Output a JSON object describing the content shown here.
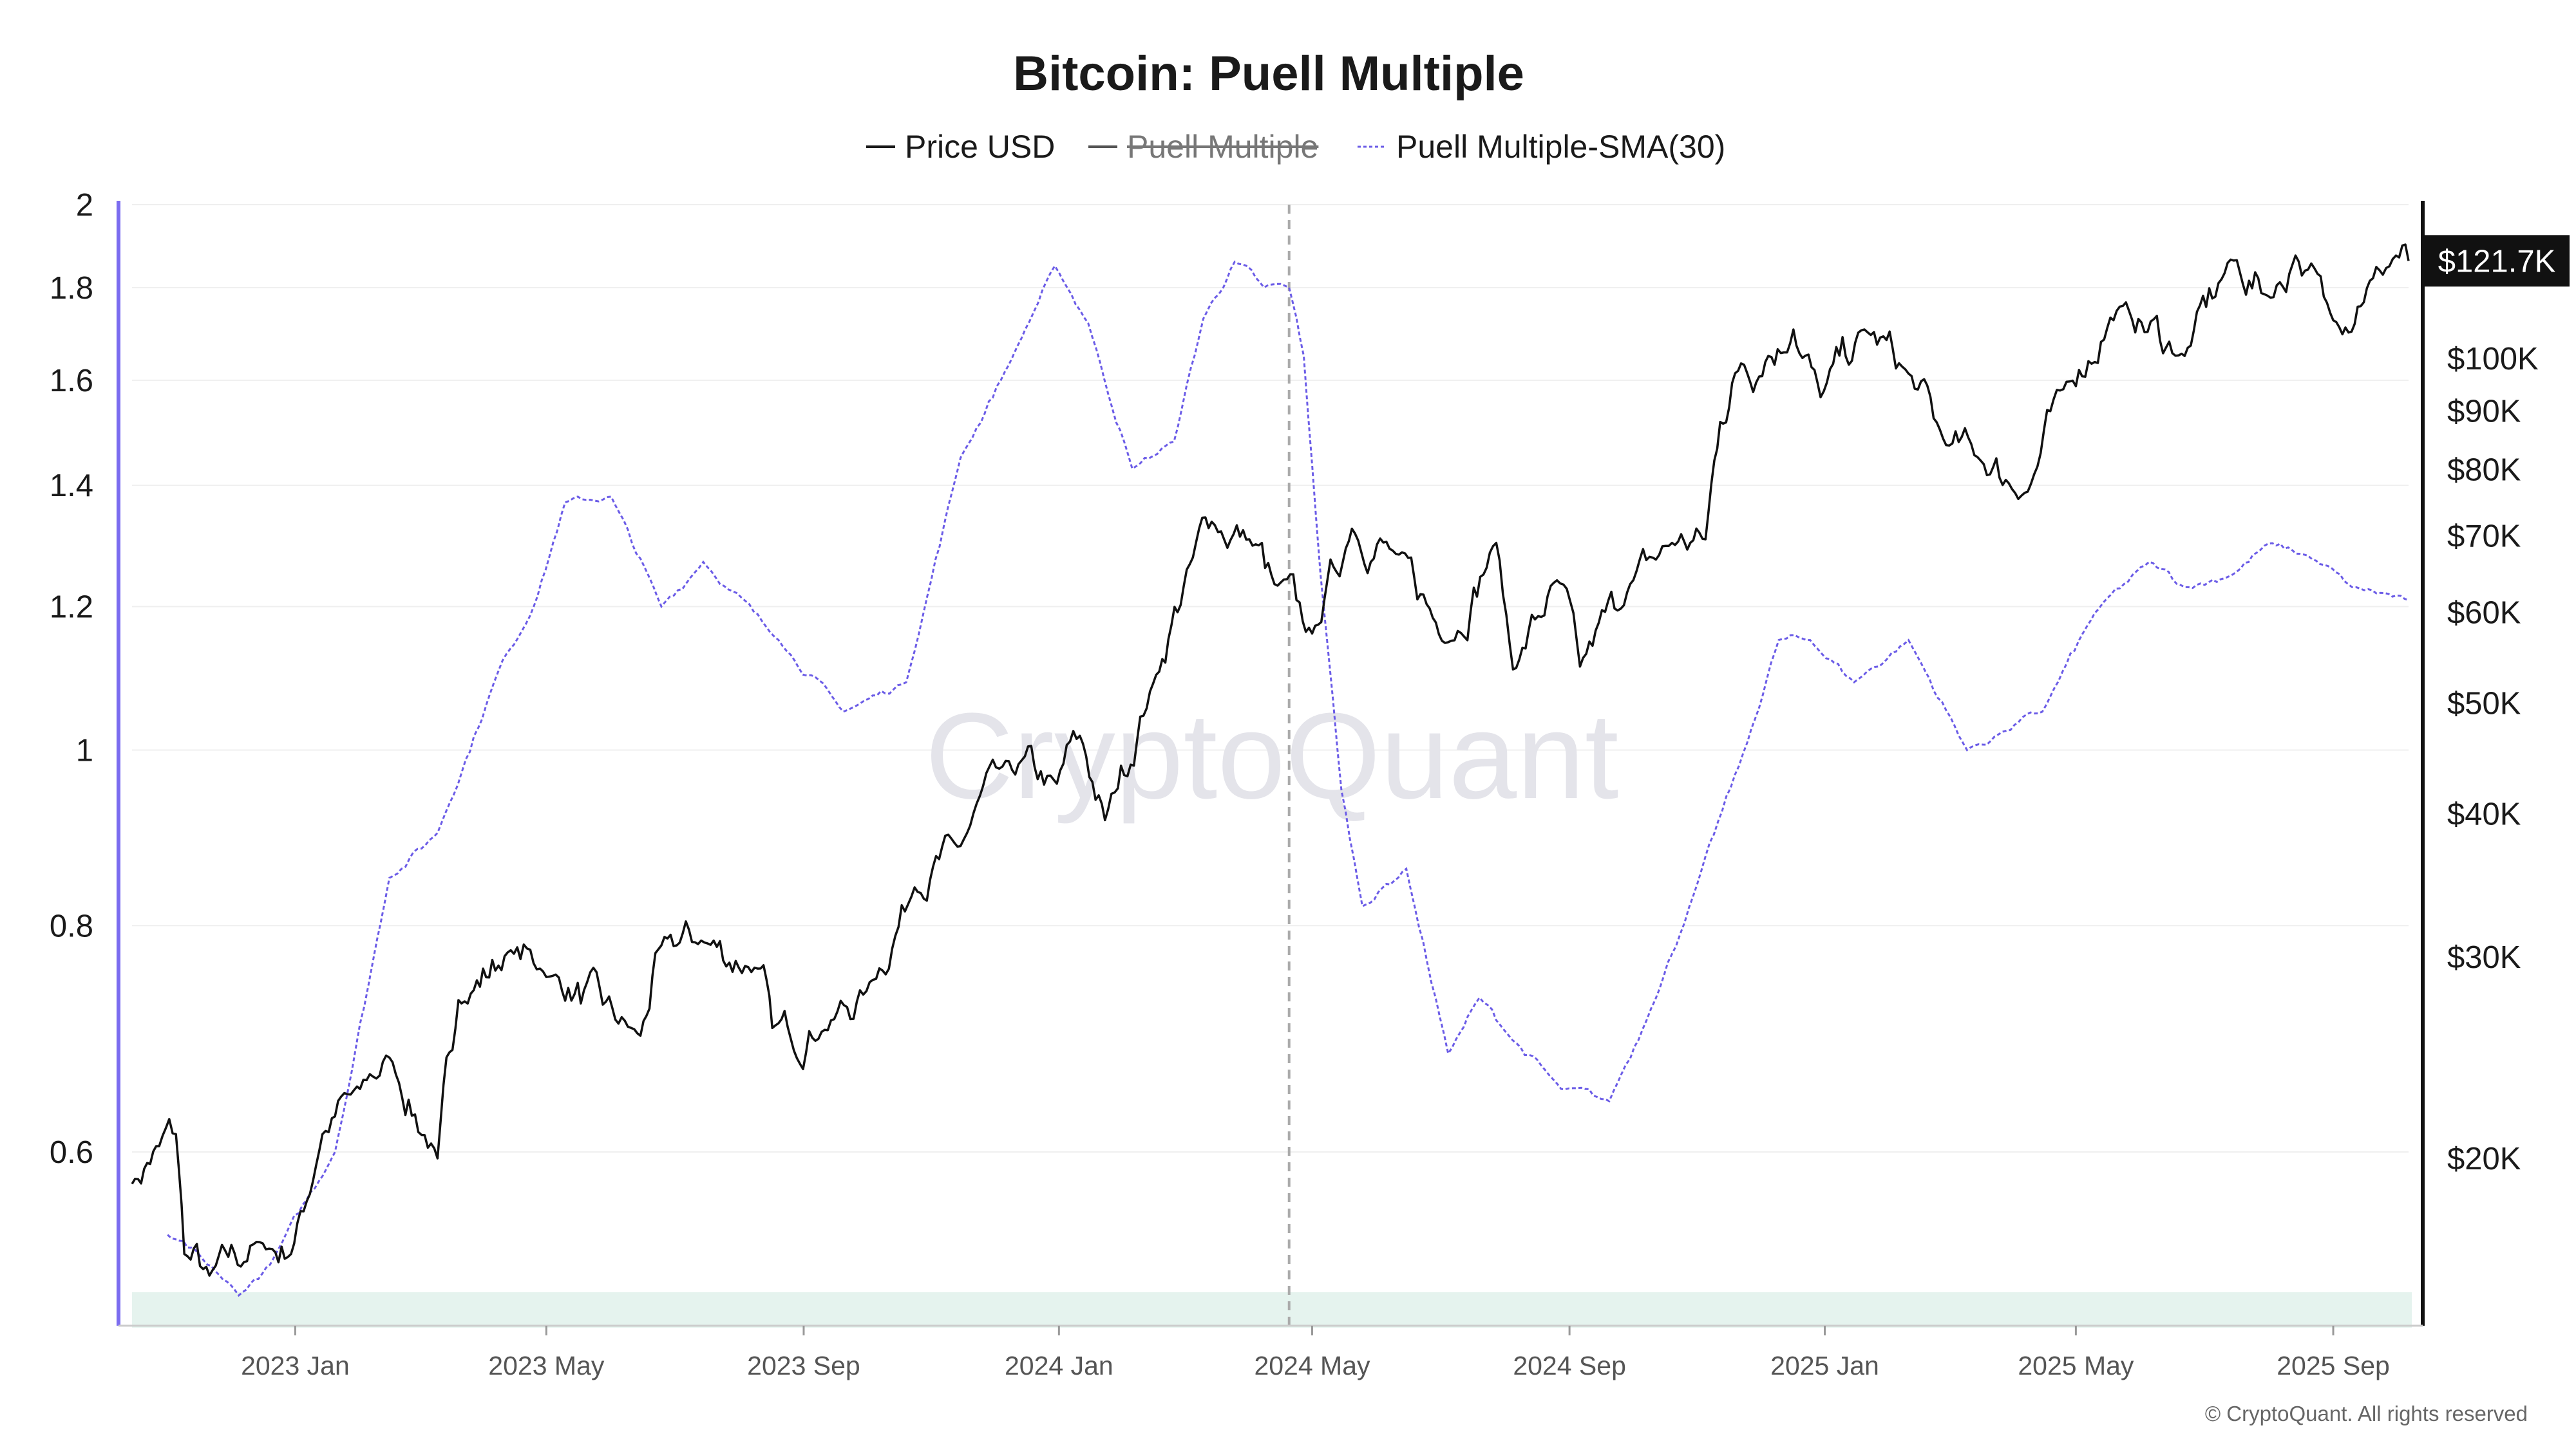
{
  "chart_data": {
    "type": "line",
    "title": "Bitcoin: Puell Multiple",
    "legend": [
      {
        "name": "Price USD",
        "color": "#1a1a1a",
        "style": "solid",
        "visible": true
      },
      {
        "name": "Puell Multiple",
        "color": "#555555",
        "style": "solid",
        "visible": false
      },
      {
        "name": "Puell Multiple-SMA(30)",
        "color": "#6b5ce7",
        "style": "dashed",
        "visible": true
      }
    ],
    "legend_placement": "top-center",
    "x_ticks": [
      "2023 Jan",
      "2023 May",
      "2023 Sep",
      "2024 Jan",
      "2024 May",
      "2024 Sep",
      "2025 Jan",
      "2025 May",
      "2025 Sep"
    ],
    "x_tick_dates": [
      "2023-01-01",
      "2023-05-01",
      "2023-09-01",
      "2024-01-01",
      "2024-05-01",
      "2024-09-01",
      "2025-01-01",
      "2025-05-01",
      "2025-09-01"
    ],
    "x_range": [
      "2022-10-15",
      "2025-10-07"
    ],
    "left_axis": {
      "scale": "log",
      "range": [
        0.5,
        2
      ],
      "ticks": [
        "2",
        "1.8",
        "1.6",
        "1.4",
        "1.2",
        "1",
        "0.8",
        "0.6"
      ],
      "tick_values": [
        2,
        1.8,
        1.6,
        1.4,
        1.2,
        1,
        0.8,
        0.6
      ]
    },
    "right_axis": {
      "scale": "log",
      "ticks": [
        "$100K",
        "$90K",
        "$80K",
        "$70K",
        "$60K",
        "$50K",
        "$40K",
        "$30K",
        "$20K"
      ],
      "tick_values": [
        100000,
        90000,
        80000,
        70000,
        60000,
        50000,
        40000,
        30000,
        20000
      ]
    },
    "current_price_label": "$121.7K",
    "current_price": 121700,
    "vertical_marker_date": "2024-04-20",
    "grid": true,
    "series": [
      {
        "name": "Price USD",
        "axis": "right",
        "x": [
          "2022-10-15",
          "2022-10-28",
          "2022-11-05",
          "2022-11-09",
          "2022-11-21",
          "2022-12-15",
          "2022-12-30",
          "2023-01-14",
          "2023-02-01",
          "2023-02-15",
          "2023-03-10",
          "2023-03-20",
          "2023-04-14",
          "2023-04-28",
          "2023-06-15",
          "2023-06-25",
          "2023-07-14",
          "2023-08-10",
          "2023-08-17",
          "2023-09-11",
          "2023-10-01",
          "2023-10-24",
          "2023-11-15",
          "2023-12-05",
          "2023-12-31",
          "2024-01-11",
          "2024-01-23",
          "2024-02-15",
          "2024-03-05",
          "2024-03-14",
          "2024-04-01",
          "2024-04-13",
          "2024-05-01",
          "2024-05-20",
          "2024-06-10",
          "2024-07-05",
          "2024-07-28",
          "2024-08-05",
          "2024-08-26",
          "2024-09-06",
          "2024-09-30",
          "2024-10-20",
          "2024-11-05",
          "2024-11-12",
          "2024-11-22",
          "2024-12-05",
          "2024-12-17",
          "2024-12-30",
          "2025-01-20",
          "2025-02-10",
          "2025-02-28",
          "2025-03-15",
          "2025-04-08",
          "2025-04-25",
          "2025-05-22",
          "2025-06-22",
          "2025-07-14",
          "2025-08-02",
          "2025-08-14",
          "2025-09-01",
          "2025-09-20",
          "2025-10-01",
          "2025-10-07"
        ],
        "values": [
          19000,
          20500,
          21000,
          16500,
          15800,
          16900,
          16500,
          21000,
          23000,
          24500,
          20000,
          27500,
          30400,
          29300,
          25600,
          30700,
          31000,
          29300,
          26000,
          25900,
          28000,
          34500,
          37500,
          44000,
          42500,
          46800,
          39500,
          52000,
          67000,
          72000,
          69500,
          63500,
          57500,
          71000,
          67500,
          56500,
          69000,
          53500,
          64000,
          53800,
          63500,
          69000,
          69500,
          88000,
          99000,
          100500,
          106000,
          92500,
          106000,
          97000,
          84000,
          82000,
          76500,
          94000,
          111000,
          100500,
          122000,
          113000,
          123000,
          108000,
          117500,
          123000,
          121700
        ]
      },
      {
        "name": "Puell Multiple-SMA(30)",
        "axis": "left",
        "x": [
          "2022-11-01",
          "2022-11-20",
          "2022-12-05",
          "2022-12-20",
          "2023-01-20",
          "2023-02-15",
          "2023-03-10",
          "2023-04-10",
          "2023-04-25",
          "2023-05-10",
          "2023-06-01",
          "2023-06-25",
          "2023-07-15",
          "2023-08-20",
          "2023-09-20",
          "2023-10-20",
          "2023-11-15",
          "2023-12-10",
          "2023-12-30",
          "2024-01-15",
          "2024-02-05",
          "2024-02-25",
          "2024-03-10",
          "2024-03-25",
          "2024-04-08",
          "2024-04-20",
          "2024-04-27",
          "2024-05-05",
          "2024-05-15",
          "2024-05-25",
          "2024-06-15",
          "2024-07-05",
          "2024-07-20",
          "2024-08-01",
          "2024-08-28",
          "2024-09-20",
          "2024-10-10",
          "2024-10-30",
          "2024-11-25",
          "2024-12-10",
          "2024-12-25",
          "2025-01-15",
          "2025-02-10",
          "2025-03-10",
          "2025-03-25",
          "2025-04-15",
          "2025-05-10",
          "2025-06-05",
          "2025-06-22",
          "2025-07-15",
          "2025-08-01",
          "2025-08-20",
          "2025-09-10",
          "2025-10-07"
        ],
        "values": [
          0.54,
          0.52,
          0.5,
          0.52,
          0.6,
          0.85,
          0.9,
          1.12,
          1.2,
          1.37,
          1.38,
          1.2,
          1.27,
          1.15,
          1.05,
          1.09,
          1.45,
          1.65,
          1.85,
          1.72,
          1.43,
          1.48,
          1.73,
          1.86,
          1.8,
          1.8,
          1.65,
          1.25,
          0.95,
          0.82,
          0.86,
          0.68,
          0.73,
          0.7,
          0.65,
          0.64,
          0.72,
          0.83,
          1.01,
          1.15,
          1.15,
          1.09,
          1.15,
          1.0,
          1.02,
          1.05,
          1.19,
          1.27,
          1.23,
          1.25,
          1.3,
          1.28,
          1.23,
          1.21
        ]
      }
    ]
  },
  "watermark": "CryptoQuant",
  "copyright": "© CryptoQuant. All rights reserved"
}
